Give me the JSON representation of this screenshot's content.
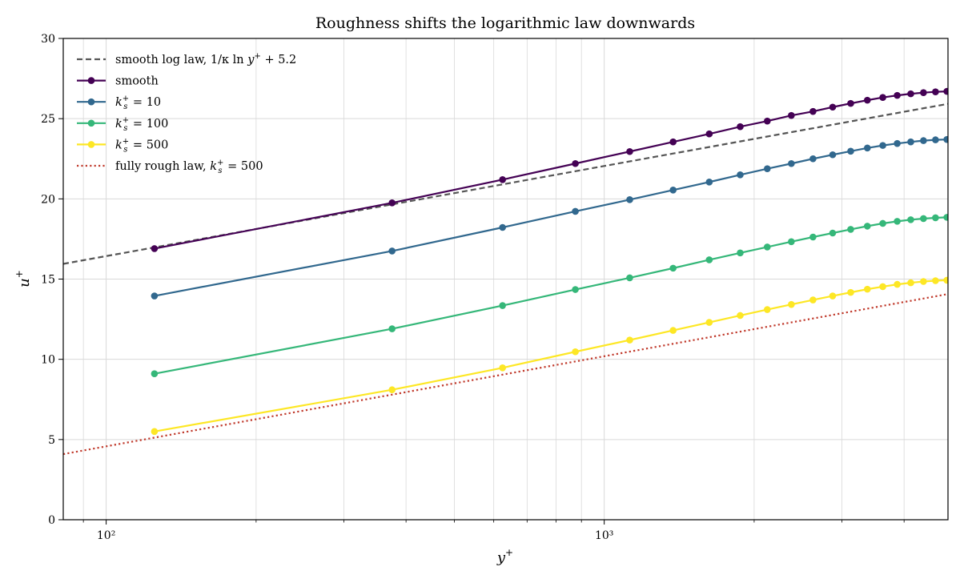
{
  "chart_data": {
    "type": "line",
    "title": "Roughness shifts the logarithmic law downwards",
    "xlabel": "y+",
    "ylabel": "u+",
    "xscale": "log",
    "xlim": [
      82,
      4900
    ],
    "ylim": [
      0,
      30
    ],
    "x_ticks": [
      100,
      1000
    ],
    "x_tick_labels": [
      "10²",
      "10³"
    ],
    "y_ticks": [
      0,
      5,
      10,
      15,
      20,
      25,
      30
    ],
    "grid": true,
    "legend_position": "top-left",
    "x": [
      125,
      375,
      625,
      875,
      1125,
      1375,
      1625,
      1875,
      2125,
      2375,
      2625,
      2875,
      3125,
      3375,
      3625,
      3875,
      4125,
      4375,
      4625,
      4875
    ],
    "series": [
      {
        "name": "smooth",
        "color": "#440154",
        "style": "solid-markers",
        "values": [
          16.9,
          19.75,
          21.2,
          22.2,
          22.95,
          23.55,
          24.05,
          24.5,
          24.85,
          25.2,
          25.45,
          25.72,
          25.95,
          26.15,
          26.32,
          26.45,
          26.55,
          26.62,
          26.67,
          26.7
        ]
      },
      {
        "name": "k_s+ = 10",
        "color": "#31688e",
        "style": "solid-markers",
        "values": [
          13.95,
          16.75,
          18.22,
          19.22,
          19.95,
          20.55,
          21.05,
          21.5,
          21.88,
          22.2,
          22.5,
          22.75,
          22.97,
          23.17,
          23.33,
          23.45,
          23.55,
          23.63,
          23.68,
          23.7
        ]
      },
      {
        "name": "k_s+ = 100",
        "color": "#35b779",
        "style": "solid-markers",
        "values": [
          9.1,
          11.9,
          13.35,
          14.35,
          15.08,
          15.68,
          16.2,
          16.63,
          17.0,
          17.33,
          17.62,
          17.87,
          18.1,
          18.3,
          18.47,
          18.6,
          18.7,
          18.77,
          18.82,
          18.85
        ]
      },
      {
        "name": "k_s+ = 500",
        "color": "#fde725",
        "style": "solid-markers",
        "values": [
          5.5,
          8.1,
          9.47,
          10.47,
          11.2,
          11.8,
          12.3,
          12.73,
          13.1,
          13.42,
          13.7,
          13.95,
          14.17,
          14.37,
          14.53,
          14.67,
          14.77,
          14.85,
          14.9,
          14.93
        ]
      }
    ],
    "reference_lines": [
      {
        "name": "smooth log law, 1/κ ln y+ + 5.2",
        "color": "#555555",
        "style": "dashed",
        "kappa": 0.41,
        "intercept": 5.2
      },
      {
        "name": "fully rough law, k_s+ = 500",
        "color": "#c0392b",
        "style": "dotted",
        "kappa": 0.41,
        "intercept": 8.5,
        "ks": 500
      }
    ]
  }
}
